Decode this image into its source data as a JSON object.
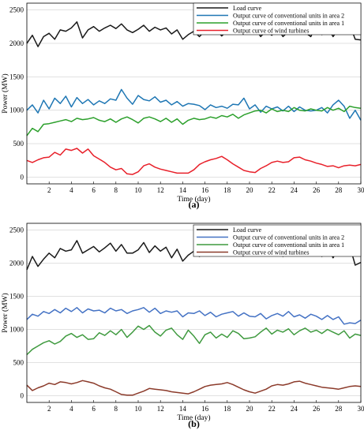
{
  "figure": {
    "colors": {
      "load": "#1a1a1a",
      "a_area2": "#1f77b4",
      "a_area1": "#2ca02c",
      "a_wind": "#e8202a",
      "b_area2": "#4472c4",
      "b_area1": "#3f9a3f",
      "b_wind": "#8b3a2a"
    }
  },
  "chart_data": [
    {
      "type": "line",
      "panel_label": "(a)",
      "xlabel": "Time (day)",
      "ylabel": "Power (MW)",
      "xlim": [
        0,
        30
      ],
      "ylim": [
        -100,
        2600
      ],
      "xticks": [
        "2",
        "4",
        "6",
        "8",
        "10",
        "12",
        "14",
        "16",
        "18",
        "20",
        "22",
        "24",
        "26",
        "28",
        "30"
      ],
      "yticks": [
        "0",
        "500",
        "1000",
        "1500",
        "2000",
        "2500"
      ],
      "grid": "horizontal",
      "legend_position": "top-right",
      "x": [
        0,
        0.5,
        1,
        1.5,
        2,
        2.5,
        3,
        3.5,
        4,
        4.5,
        5,
        5.5,
        6,
        6.5,
        7,
        7.5,
        8,
        8.5,
        9,
        9.5,
        10,
        10.5,
        11,
        11.5,
        12,
        12.5,
        13,
        13.5,
        14,
        14.5,
        15,
        15.5,
        16,
        16.5,
        17,
        17.5,
        18,
        18.5,
        19,
        19.5,
        20,
        20.5,
        21,
        21.5,
        22,
        22.5,
        23,
        23.5,
        24,
        24.5,
        25,
        25.5,
        26,
        26.5,
        27,
        27.5,
        28,
        28.5,
        29,
        29.5,
        30
      ],
      "series": [
        {
          "name": "Load curve",
          "color_key": "load",
          "values": [
            2000,
            2120,
            1950,
            2100,
            2150,
            2060,
            2200,
            2180,
            2230,
            2320,
            2080,
            2200,
            2250,
            2180,
            2230,
            2270,
            2220,
            2290,
            2200,
            2160,
            2210,
            2270,
            2180,
            2240,
            2200,
            2230,
            2140,
            2200,
            2060,
            2130,
            2180,
            2100,
            2190,
            2150,
            2210,
            2110,
            2190,
            2220,
            2250,
            2160,
            2200,
            2240,
            2100,
            2190,
            2120,
            2230,
            2100,
            2180,
            2220,
            2140,
            2160,
            2100,
            2280,
            2130,
            2240,
            2100,
            2220,
            2150,
            2280,
            2060,
            2050
          ]
        },
        {
          "name": "Output curve of conventional units in area 2",
          "color_key": "a_area2",
          "values": [
            1000,
            1080,
            960,
            1150,
            1020,
            1180,
            1100,
            1210,
            1050,
            1190,
            1100,
            1160,
            1080,
            1140,
            1100,
            1170,
            1150,
            1310,
            1180,
            1090,
            1220,
            1160,
            1140,
            1200,
            1120,
            1150,
            1080,
            1130,
            1060,
            1100,
            1090,
            1070,
            1010,
            1080,
            1040,
            1060,
            1030,
            1090,
            1080,
            1180,
            1020,
            1080,
            970,
            1060,
            1020,
            1050,
            990,
            1060,
            980,
            1050,
            1000,
            990,
            1000,
            1040,
            960,
            1080,
            1150,
            1060,
            880,
            1000,
            850
          ]
        },
        {
          "name": "Output curve of conventional units in area 1",
          "color_key": "a_area1",
          "values": [
            620,
            730,
            680,
            790,
            800,
            820,
            840,
            860,
            830,
            880,
            860,
            870,
            890,
            850,
            830,
            870,
            820,
            870,
            900,
            860,
            810,
            880,
            900,
            870,
            830,
            880,
            820,
            870,
            790,
            850,
            880,
            860,
            870,
            900,
            880,
            920,
            900,
            940,
            880,
            930,
            960,
            990,
            1000,
            960,
            1020,
            980,
            1000,
            980,
            1040,
            1000,
            990,
            1020,
            1000,
            990,
            1040,
            1000,
            1030,
            980,
            1060,
            1040,
            1030
          ]
        },
        {
          "name": "Output curve of wind turbines",
          "color_key": "a_wind",
          "values": [
            250,
            220,
            260,
            290,
            300,
            370,
            330,
            420,
            400,
            430,
            360,
            420,
            320,
            270,
            220,
            150,
            110,
            130,
            50,
            40,
            80,
            170,
            200,
            150,
            120,
            100,
            80,
            60,
            60,
            60,
            110,
            190,
            230,
            260,
            280,
            310,
            260,
            200,
            150,
            100,
            80,
            70,
            130,
            170,
            220,
            240,
            220,
            230,
            290,
            300,
            260,
            240,
            210,
            190,
            160,
            170,
            140,
            170,
            180,
            170,
            190
          ]
        }
      ]
    },
    {
      "type": "line",
      "panel_label": "(b)",
      "xlabel": "Time (day)",
      "ylabel": "Power (MW)",
      "xlim": [
        0,
        30
      ],
      "ylim": [
        -100,
        2600
      ],
      "xticks": [
        "2",
        "4",
        "6",
        "8",
        "10",
        "12",
        "14",
        "16",
        "18",
        "20",
        "22",
        "24",
        "26",
        "28",
        "30"
      ],
      "yticks": [
        "0",
        "500",
        "1000",
        "1500",
        "2000",
        "2500"
      ],
      "grid": "horizontal",
      "legend_position": "top-right",
      "x": [
        0,
        0.5,
        1,
        1.5,
        2,
        2.5,
        3,
        3.5,
        4,
        4.5,
        5,
        5.5,
        6,
        6.5,
        7,
        7.5,
        8,
        8.5,
        9,
        9.5,
        10,
        10.5,
        11,
        11.5,
        12,
        12.5,
        13,
        13.5,
        14,
        14.5,
        15,
        15.5,
        16,
        16.5,
        17,
        17.5,
        18,
        18.5,
        19,
        19.5,
        20,
        20.5,
        21,
        21.5,
        22,
        22.5,
        23,
        23.5,
        24,
        24.5,
        25,
        25.5,
        26,
        26.5,
        27,
        27.5,
        28,
        28.5,
        29,
        29.5,
        30
      ],
      "series": [
        {
          "name": "Load curve",
          "color_key": "load",
          "values": [
            1900,
            2100,
            1950,
            2060,
            2150,
            2080,
            2220,
            2180,
            2200,
            2340,
            2150,
            2200,
            2250,
            2170,
            2230,
            2300,
            2180,
            2280,
            2150,
            2150,
            2200,
            2310,
            2160,
            2260,
            2180,
            2240,
            2080,
            2210,
            2030,
            2120,
            2180,
            2100,
            2200,
            2160,
            2210,
            2140,
            2200,
            2250,
            2280,
            2150,
            2230,
            2260,
            2110,
            2200,
            2120,
            2240,
            2100,
            2180,
            2220,
            2150,
            2160,
            2110,
            2290,
            2100,
            2250,
            2080,
            2230,
            2150,
            2260,
            1970,
            2010
          ]
        },
        {
          "name": "Output curve of conventional units in area 2",
          "color_key": "b_area2",
          "values": [
            1150,
            1230,
            1200,
            1270,
            1240,
            1300,
            1250,
            1320,
            1270,
            1330,
            1250,
            1310,
            1280,
            1290,
            1250,
            1320,
            1280,
            1300,
            1240,
            1280,
            1300,
            1330,
            1260,
            1320,
            1240,
            1280,
            1260,
            1280,
            1190,
            1250,
            1240,
            1280,
            1210,
            1260,
            1190,
            1230,
            1250,
            1270,
            1200,
            1250,
            1200,
            1190,
            1240,
            1160,
            1210,
            1240,
            1200,
            1270,
            1190,
            1220,
            1170,
            1230,
            1200,
            1150,
            1210,
            1150,
            1190,
            1080,
            1100,
            1090,
            1140
          ]
        },
        {
          "name": "Output curve of conventional units in area 1",
          "color_key": "b_area1",
          "values": [
            620,
            700,
            750,
            800,
            830,
            780,
            820,
            900,
            940,
            880,
            920,
            850,
            860,
            950,
            910,
            980,
            920,
            1000,
            880,
            960,
            1050,
            1000,
            1060,
            960,
            900,
            990,
            1020,
            920,
            850,
            990,
            900,
            790,
            920,
            960,
            870,
            930,
            880,
            980,
            940,
            860,
            870,
            890,
            960,
            1020,
            930,
            990,
            960,
            1010,
            920,
            980,
            1020,
            960,
            990,
            940,
            1000,
            960,
            920,
            980,
            870,
            930,
            910
          ]
        },
        {
          "name": "Output curve of wind turbines",
          "color_key": "b_wind",
          "values": [
            160,
            80,
            120,
            150,
            190,
            170,
            210,
            200,
            180,
            200,
            230,
            210,
            190,
            150,
            120,
            100,
            60,
            20,
            10,
            10,
            40,
            70,
            110,
            100,
            90,
            80,
            60,
            50,
            40,
            30,
            60,
            100,
            140,
            160,
            170,
            180,
            200,
            170,
            130,
            90,
            60,
            40,
            70,
            100,
            150,
            170,
            160,
            180,
            210,
            220,
            190,
            170,
            150,
            130,
            120,
            110,
            100,
            120,
            140,
            150,
            140
          ]
        }
      ]
    }
  ]
}
